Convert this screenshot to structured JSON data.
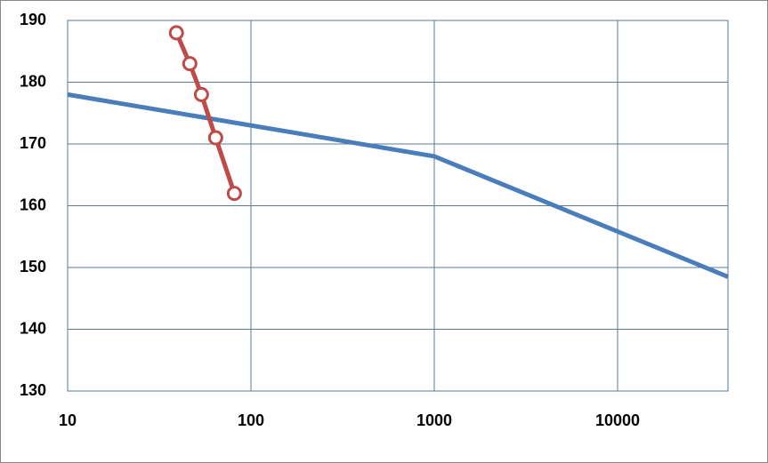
{
  "chart_data": {
    "type": "line",
    "xscale": "log",
    "grid": true,
    "xlim": [
      10,
      40000
    ],
    "xticks": [
      10,
      100,
      1000,
      10000
    ],
    "ylim": [
      130,
      190
    ],
    "yticks": [
      130,
      140,
      150,
      160,
      170,
      180,
      190
    ],
    "series": [
      {
        "color": "#4a7ebb",
        "marker": false,
        "x": [
          10,
          1000,
          40000
        ],
        "values": [
          178,
          168,
          148.5
        ]
      },
      {
        "color": "#be4b48",
        "marker": true,
        "x": [
          39.2,
          46.4,
          53.7,
          64.2,
          81.2
        ],
        "values": [
          188,
          183,
          178,
          171,
          162
        ]
      }
    ]
  }
}
